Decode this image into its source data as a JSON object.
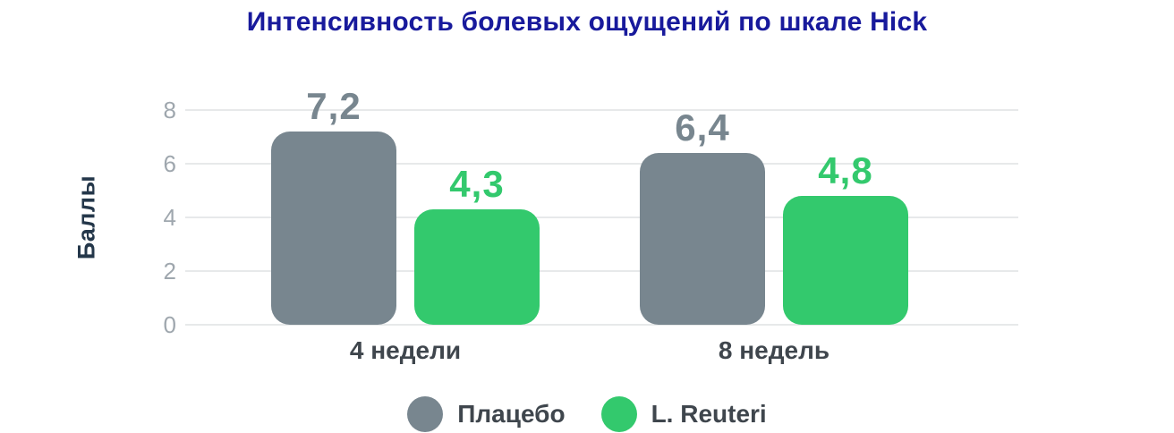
{
  "page": {
    "background": "#FFFFFF"
  },
  "chart_data": {
    "type": "bar",
    "title": "Интенсивность болевых ощущений по шкале Hick",
    "title_color": "#181A9C",
    "ylabel": "Баллы",
    "ylabel_color": "#24374A",
    "categories": [
      "4 недели",
      "8 недель"
    ],
    "series": [
      {
        "name": "Плацебо",
        "color": "#78868F",
        "values": [
          7.2,
          6.4
        ],
        "value_labels": [
          "7,2",
          "6,4"
        ]
      },
      {
        "name": "L. Reuteri",
        "color": "#33C96D",
        "values": [
          4.3,
          4.8
        ],
        "value_labels": [
          "4,3",
          "4,8"
        ]
      }
    ],
    "yticks": [
      0,
      2,
      4,
      6,
      8
    ],
    "ylim": [
      0,
      8
    ],
    "grid": true,
    "gridline_color": "#E7E9EA",
    "tick_color": "#9FA7AE",
    "category_label_color": "#3F464D",
    "legend_position": "bottom",
    "legend_text_color": "#3F464D"
  }
}
